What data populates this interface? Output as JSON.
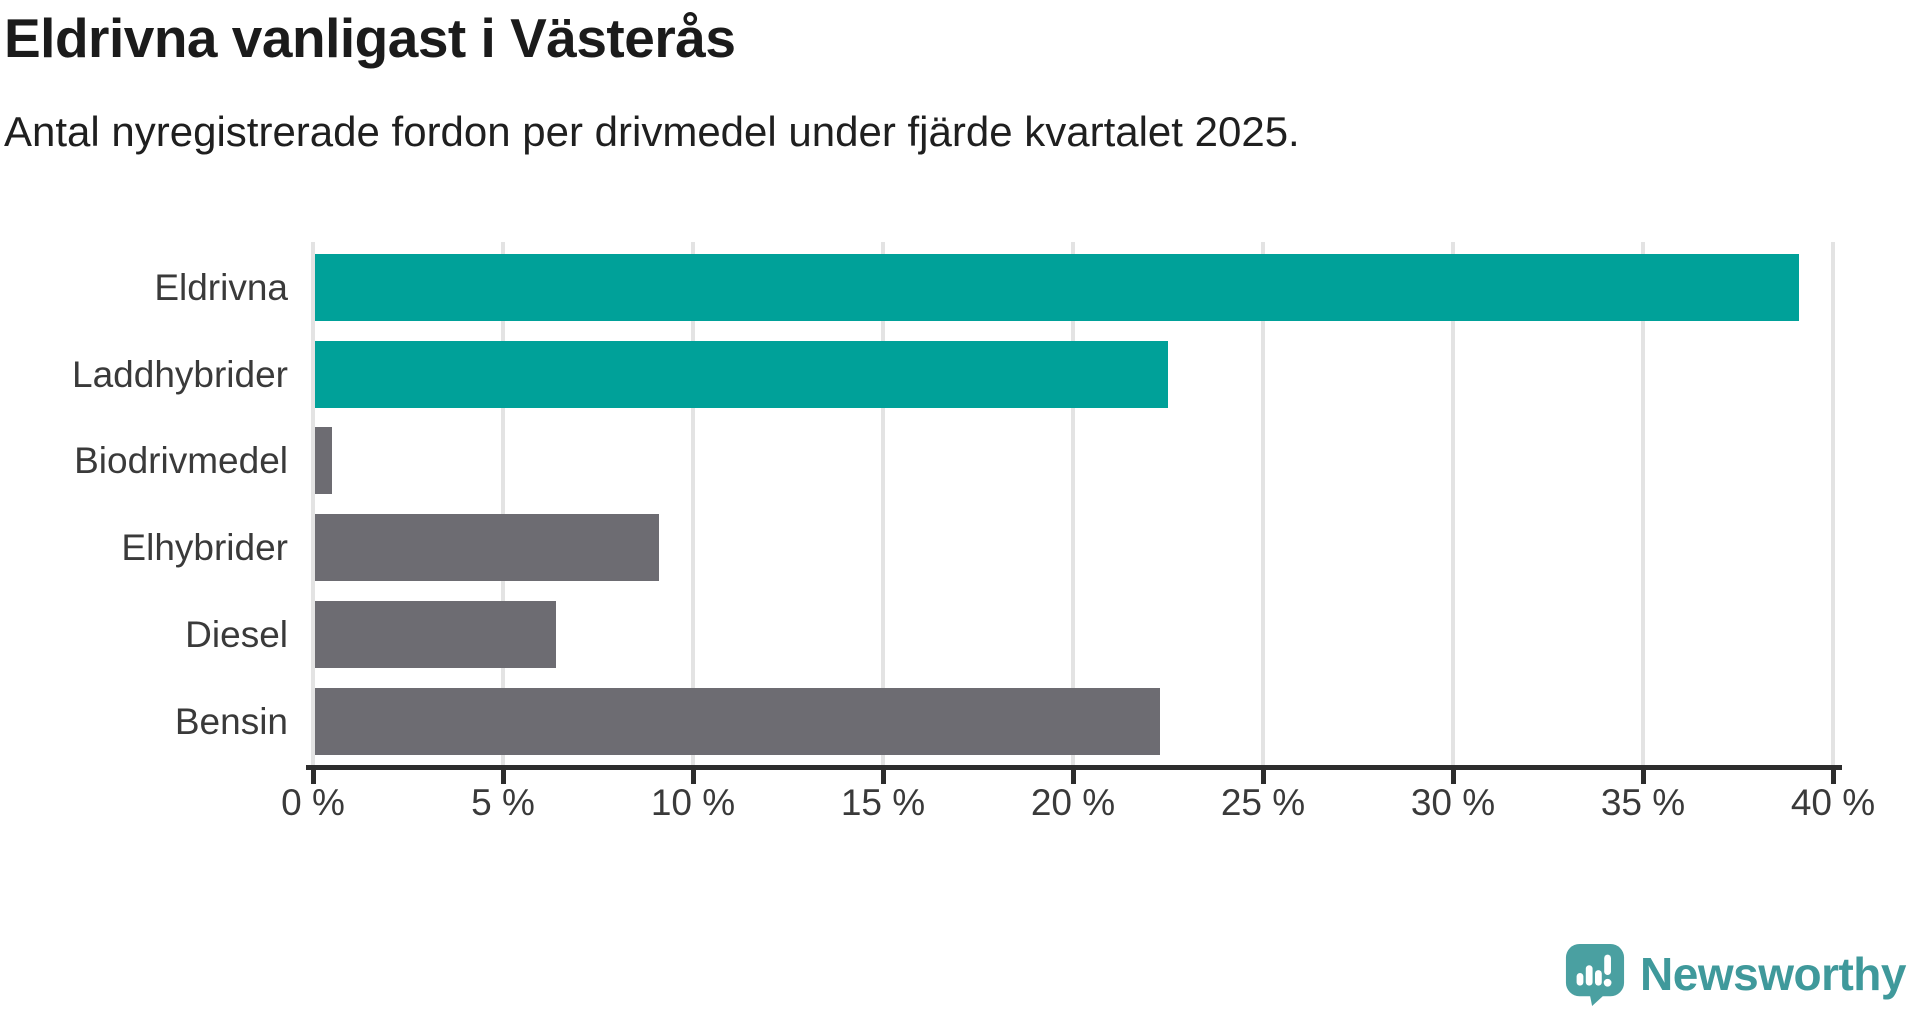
{
  "header": {
    "title": "Eldrivna vanligast i Västerås",
    "subtitle": "Antal nyregistrerade fordon per drivmedel under fjärde kvartalet 2025."
  },
  "chart_data": {
    "type": "bar",
    "orientation": "horizontal",
    "title": "Eldrivna vanligast i Västerås",
    "subtitle": "Antal nyregistrerade fordon per drivmedel under fjärde kvartalet 2025.",
    "categories": [
      "Eldrivna",
      "Laddhybrider",
      "Biodrivmedel",
      "Elhybrider",
      "Diesel",
      "Bensin"
    ],
    "values": [
      39.1,
      22.5,
      0.5,
      9.1,
      6.4,
      22.3
    ],
    "unit": "%",
    "xlabel": "",
    "ylabel": "",
    "xlim": [
      0,
      40
    ],
    "x_ticks": [
      0,
      5,
      10,
      15,
      20,
      25,
      30,
      35,
      40
    ],
    "tick_label_suffix": " %",
    "grid": true,
    "legend": "none",
    "bar_colors": [
      "#00a199",
      "#00a199",
      "#6d6c72",
      "#6d6c72",
      "#6d6c72",
      "#6d6c72"
    ],
    "highlight_color": "#00a199",
    "default_color": "#6d6c72",
    "gridline_color": "#e3e3e3",
    "axis_color": "#2d2d2d"
  },
  "footer": {
    "brand": "Newsworthy",
    "brand_color": "#3f999b",
    "logo_color": "#4aa0a1"
  }
}
